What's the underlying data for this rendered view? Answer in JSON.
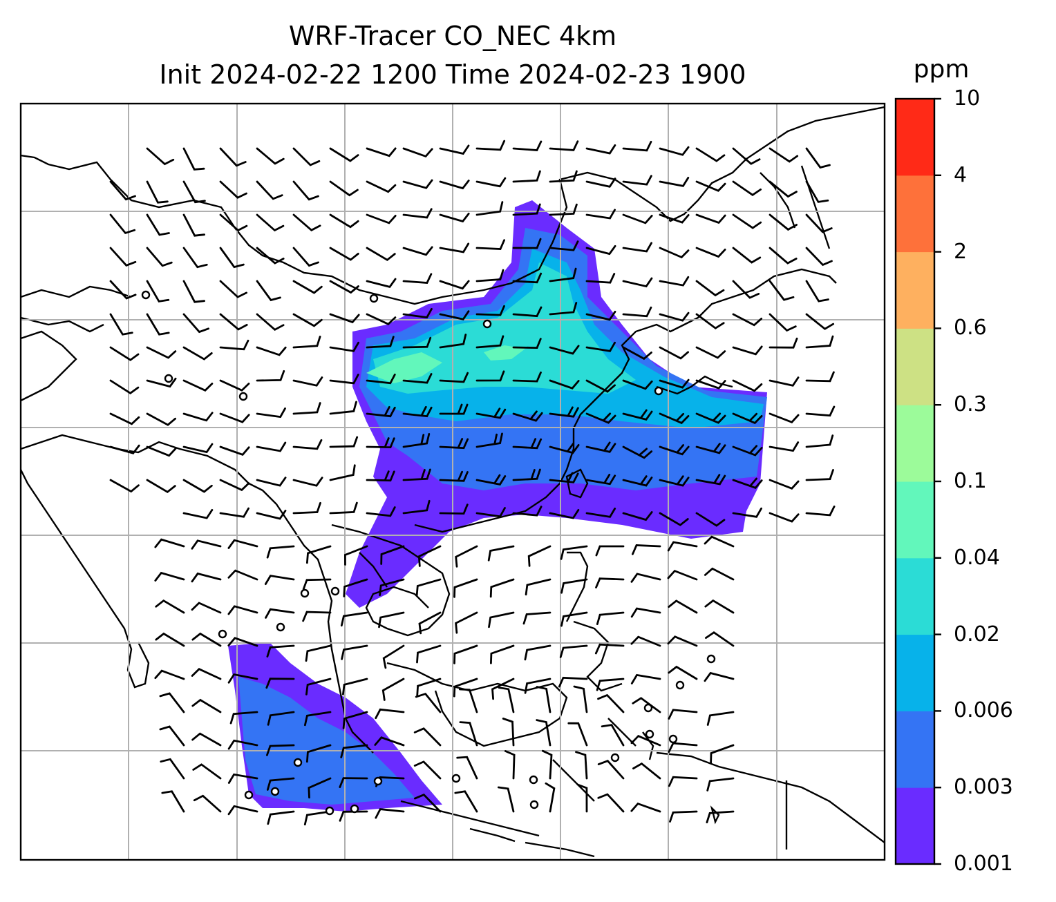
{
  "title": {
    "line1": "WRF-Tracer CO_NEC 4km",
    "line2": "Init 2024-02-22 1200 Time 2024-02-23 1900"
  },
  "colorbar": {
    "unit": "ppm",
    "levels": [
      "0.001",
      "0.003",
      "0.006",
      "0.02",
      "0.04",
      "0.1",
      "0.3",
      "0.6",
      "2",
      "4",
      "10"
    ],
    "colors": [
      "#6a2cff",
      "#3474f4",
      "#07b2ea",
      "#2bdcd6",
      "#62f7bb",
      "#9cfb9a",
      "#cde184",
      "#feb05f",
      "#fe713a",
      "#ff2a17"
    ]
  },
  "map": {
    "variable": "CO_NEC",
    "gridlines": true,
    "plume_color_low": "#6a2cff",
    "plume_color_mid": "#3474f4",
    "plume_color_high": "#2bdcd6",
    "plume_color_peak": "#62f7bb"
  }
}
